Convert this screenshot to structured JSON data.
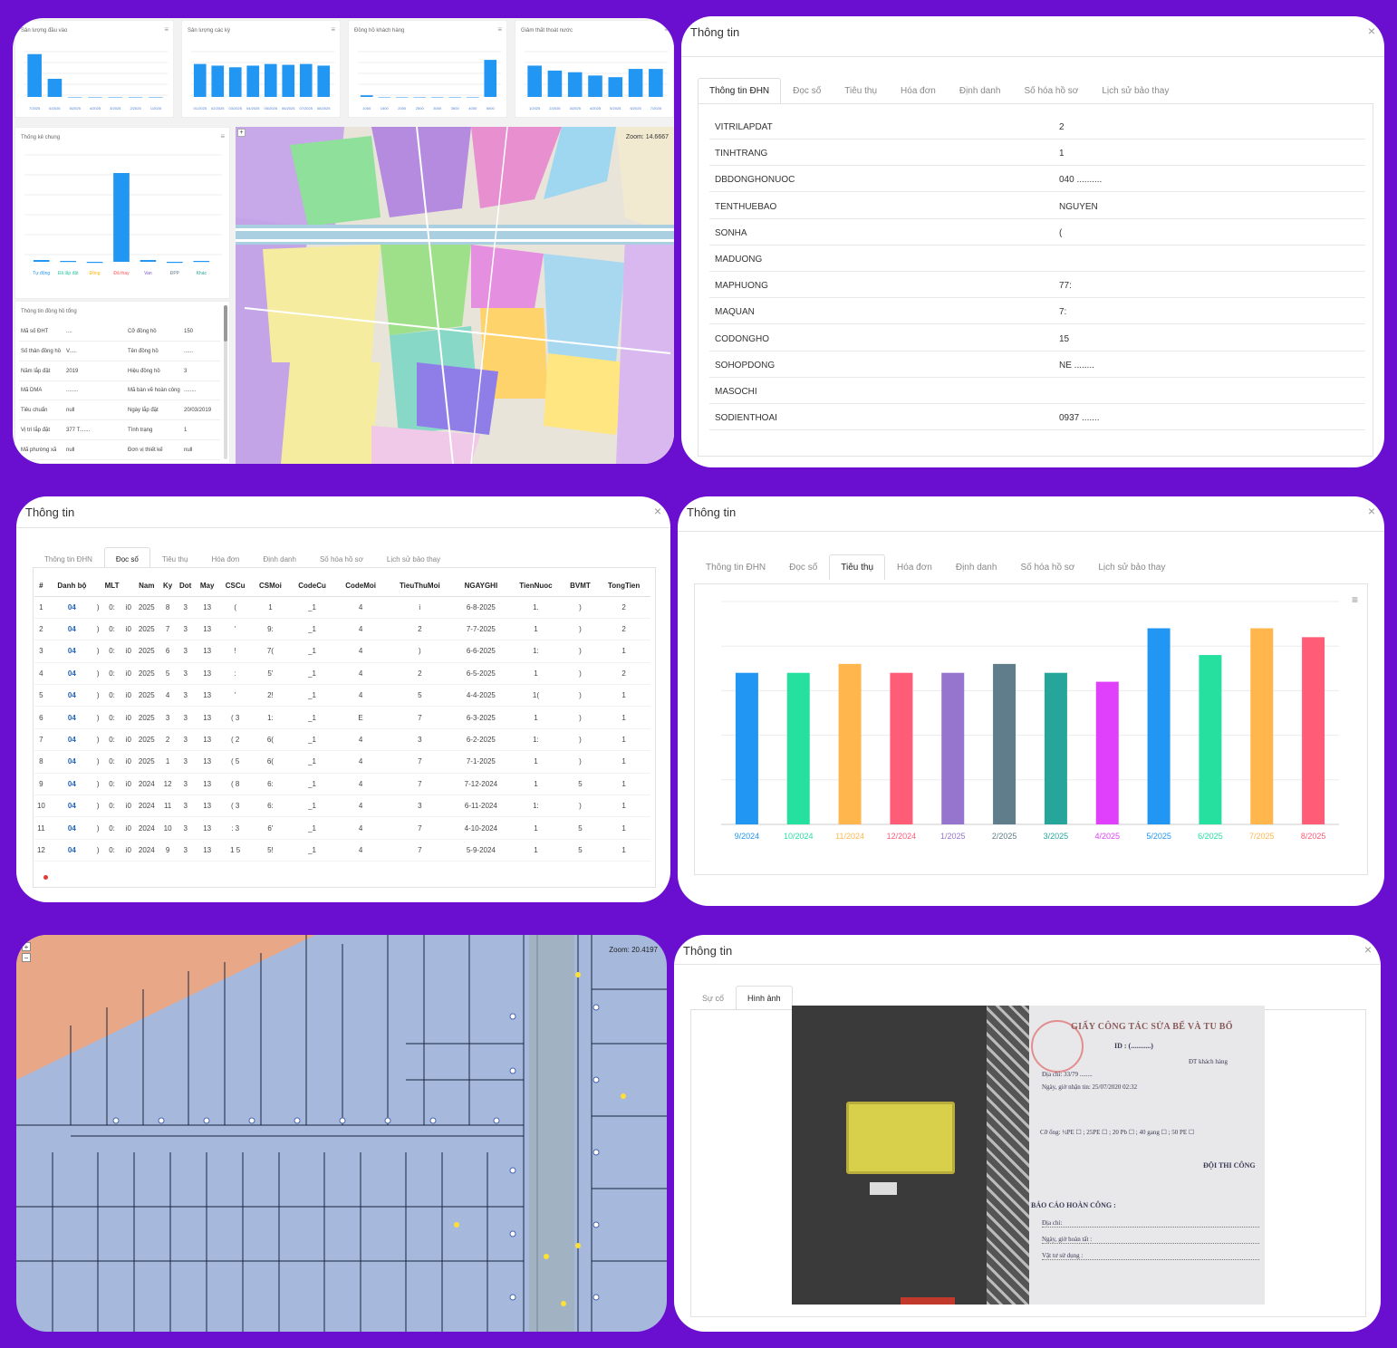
{
  "panel1": {
    "mini_charts": [
      {
        "title": "Sản lượng đầu vào",
        "values": [
          52,
          22,
          0,
          0,
          0,
          0,
          0
        ],
        "color": "#2196f3",
        "labels": [
          "7/2025",
          "6/2025",
          "5/2025",
          "4/2025",
          "3/2025",
          "2/2025",
          "1/2025"
        ]
      },
      {
        "title": "Sản lượng các kỳ",
        "values": [
          40,
          38,
          36,
          38,
          40,
          39,
          40,
          38
        ],
        "color": "#2196f3",
        "labels": [
          "01/2025",
          "02/2025",
          "03/2025",
          "04/2025",
          "05/2025",
          "06/2025",
          "07/2025",
          "08/2025"
        ]
      },
      {
        "title": "Đồng hồ khách hàng",
        "values": [
          2,
          0,
          0,
          0,
          0,
          0,
          0,
          45
        ],
        "color": "#2196f3",
        "labels": [
          "1000",
          "1500",
          "2000",
          "2500",
          "3000",
          "3500",
          "4000",
          "5000"
        ]
      },
      {
        "title": "Giảm thất thoát nước",
        "values": [
          38,
          32,
          30,
          26,
          24,
          34,
          34
        ],
        "color": "#2196f3",
        "labels": [
          "1/2025",
          "2/2025",
          "3/2025",
          "4/2025",
          "5/2025",
          "6/2025",
          "7/2025"
        ]
      }
    ],
    "stats": {
      "title": "Thống kê chung",
      "categories": [
        "Tự động",
        "Đã lắp đặt",
        "Đồng",
        "Đã thay",
        "Van",
        "ĐPP",
        "Khác"
      ],
      "values": [
        2,
        1,
        0,
        98,
        2,
        0,
        1
      ],
      "label_colors": [
        "#2196f3",
        "#26c6a0",
        "#ffb300",
        "#ff5252",
        "#7e57c2",
        "#607d8b",
        "#26a69a"
      ]
    },
    "info": {
      "title": "Thông tin đồng hồ tổng",
      "rows": [
        [
          "Mã số ĐHT",
          "....",
          "Cỡ đồng hồ",
          "150"
        ],
        [
          "Số thân đồng hồ",
          "V.....",
          "Tên đồng hồ",
          "......"
        ],
        [
          "Năm lắp đặt",
          "2019",
          "Hiệu đồng hồ",
          "3"
        ],
        [
          "Mã DMA",
          "........",
          "Mã bàn vẽ hoàn công",
          "........"
        ],
        [
          "Tiêu chuẩn",
          "null",
          "Ngày lắp đặt",
          "20/03/2019"
        ],
        [
          "Vị trí lắp đặt",
          "377 T.......",
          "Tình trạng",
          "1"
        ],
        [
          "Mã phường xã",
          "null",
          "Đơn vị thiết kế",
          "null"
        ]
      ]
    },
    "map_zoom": "Zoom: 14.6667"
  },
  "panel2": {
    "title": "Thông tin",
    "tabs": [
      "Thông tin ĐHN",
      "Đọc số",
      "Tiêu thụ",
      "Hóa đơn",
      "Định danh",
      "Số hóa hồ sơ",
      "Lịch sử bảo thay"
    ],
    "rows": [
      {
        "k": "VITRILAPDAT",
        "v": "2"
      },
      {
        "k": "TINHTRANG",
        "v": "1"
      },
      {
        "k": "DBDONGHONUOC",
        "v": "040 .........."
      },
      {
        "k": "TENTHUEBAO",
        "v": "NGUYEN"
      },
      {
        "k": "SONHA",
        "v": "("
      },
      {
        "k": "MADUONG",
        "v": ""
      },
      {
        "k": "MAPHUONG",
        "v": "77:"
      },
      {
        "k": "MAQUAN",
        "v": "7:"
      },
      {
        "k": "CODONGHO",
        "v": "15"
      },
      {
        "k": "SOHOPDONG",
        "v": "NE ........"
      },
      {
        "k": "MASOCHI",
        "v": ""
      },
      {
        "k": "SODIENTHOAI",
        "v": "0937 ......."
      }
    ]
  },
  "panel3": {
    "title": "Thông tin",
    "tabs": [
      "Thông tin ĐHN",
      "Đọc số",
      "Tiêu thụ",
      "Hóa đơn",
      "Định danh",
      "Số hóa hồ sơ",
      "Lịch sử bảo thay"
    ],
    "headers": [
      "#",
      "Danh bộ",
      "",
      "MLT",
      "",
      "Nam",
      "Ky",
      "Dot",
      "May",
      "CSCu",
      "CSMoi",
      "CodeCu",
      "CodeMoi",
      "TieuThuMoi",
      "NGAYGHI",
      "TienNuoc",
      "BVMT",
      "TongTien"
    ],
    "rows": [
      [
        "1",
        "04",
        ")",
        "0:",
        "i0",
        "2025",
        "8",
        "3",
        "13",
        "(",
        "1",
        "_1",
        "4",
        "i",
        "6-8-2025",
        "1.",
        ")",
        "2"
      ],
      [
        "2",
        "04",
        ")",
        "0:",
        "i0",
        "2025",
        "7",
        "3",
        "13",
        "'",
        "9:",
        "_1",
        "4",
        "2",
        "7-7-2025",
        "1",
        ")",
        "2"
      ],
      [
        "3",
        "04",
        ")",
        "0:",
        "i0",
        "2025",
        "6",
        "3",
        "13",
        "!",
        "7(",
        "_1",
        "4",
        ")",
        "6-6-2025",
        "1:",
        ")",
        "1"
      ],
      [
        "4",
        "04",
        ")",
        "0:",
        "i0",
        "2025",
        "5",
        "3",
        "13",
        ":",
        "5'",
        "_1",
        "4",
        "2",
        "6-5-2025",
        "1",
        ")",
        "2"
      ],
      [
        "5",
        "04",
        ")",
        "0:",
        "i0",
        "2025",
        "4",
        "3",
        "13",
        "'",
        "2!",
        "_1",
        "4",
        "5",
        "4-4-2025",
        "1(",
        ")",
        "1"
      ],
      [
        "6",
        "04",
        ")",
        "0:",
        "i0",
        "2025",
        "3",
        "3",
        "13",
        "( 3",
        "1:",
        "_1",
        "E",
        "7",
        "6-3-2025",
        "1",
        ")",
        "1"
      ],
      [
        "7",
        "04",
        ")",
        "0:",
        "i0",
        "2025",
        "2",
        "3",
        "13",
        "( 2",
        "6(",
        "_1",
        "4",
        "3",
        "6-2-2025",
        "1:",
        ")",
        "1"
      ],
      [
        "8",
        "04",
        ")",
        "0:",
        "i0",
        "2025",
        "1",
        "3",
        "13",
        "( 5",
        "6(",
        "_1",
        "4",
        "7",
        "7-1-2025",
        "1",
        ")",
        "1"
      ],
      [
        "9",
        "04",
        ")",
        "0:",
        "i0",
        "2024",
        "12",
        "3",
        "13",
        "( 8",
        "6:",
        "_1",
        "4",
        "7",
        "7-12-2024",
        "1",
        "5",
        "1"
      ],
      [
        "10",
        "04",
        ")",
        "0:",
        "i0",
        "2024",
        "11",
        "3",
        "13",
        "( 3",
        "6:",
        "_1",
        "4",
        "3",
        "6-11-2024",
        "1:",
        ")",
        "1"
      ],
      [
        "11",
        "04",
        ")",
        "0:",
        "i0",
        "2024",
        "10",
        "3",
        "13",
        ": 3",
        "6'",
        "_1",
        "4",
        "7",
        "4-10-2024",
        "1",
        "5",
        "1"
      ],
      [
        "12",
        "04",
        ")",
        "0:",
        "i0",
        "2024",
        "9",
        "3",
        "13",
        "1 5",
        "5!",
        "_1",
        "4",
        "7",
        "5-9-2024",
        "1",
        "5",
        "1"
      ]
    ]
  },
  "panel4": {
    "title": "Thông tin",
    "tabs": [
      "Thông tin ĐHN",
      "Đọc số",
      "Tiêu thụ",
      "Hóa đơn",
      "Định danh",
      "Số hóa hồ sơ",
      "Lịch sử bảo thay"
    ]
  },
  "chart_data": {
    "type": "bar",
    "categories": [
      "9/2024",
      "10/2024",
      "11/2024",
      "12/2024",
      "1/2025",
      "2/2025",
      "3/2025",
      "4/2025",
      "5/2025",
      "6/2025",
      "7/2025",
      "8/2025"
    ],
    "values": [
      17,
      17,
      18,
      17,
      17,
      18,
      17,
      16,
      22,
      19,
      22,
      21
    ],
    "colors": [
      "#2196f3",
      "#26e0a0",
      "#ffb74d",
      "#ff5c77",
      "#9575cd",
      "#607d8b",
      "#26a69a",
      "#e040fb",
      "#2196f3",
      "#26e0a0",
      "#ffb74d",
      "#ff5c77"
    ],
    "ylim": [
      0,
      25
    ],
    "grid": true
  },
  "panel5": {
    "map_zoom": "Zoom: 20.4197"
  },
  "panel6": {
    "title": "Thông tin",
    "tabs": [
      "Sự cố",
      "Hình ảnh"
    ],
    "doc": {
      "heading": "GIẤY CÔNG TÁC SỬA BỂ VÀ TU BỔ",
      "id_line": "ID : (...........)",
      "dt_label": "ĐT khách hàng",
      "address_line": "Địa chỉ: 33/79 ........",
      "time_line": "Ngày, giờ nhận tin: 25/07/2020 02:32",
      "team_label": "ĐỘI THI CÔNG",
      "report_title": "BÁO CÁO HOÀN CÔNG :",
      "report_lines": [
        "Địa chỉ:",
        "Ngày, giờ hoàn tất :",
        "Vật tư sử dụng :"
      ],
      "size_line": "Cỡ ống: ½PE ☐ ; 25PE ☐ ; 20 Pb ☐ ; 40 gang ☐ ; 50 PE ☐"
    }
  }
}
